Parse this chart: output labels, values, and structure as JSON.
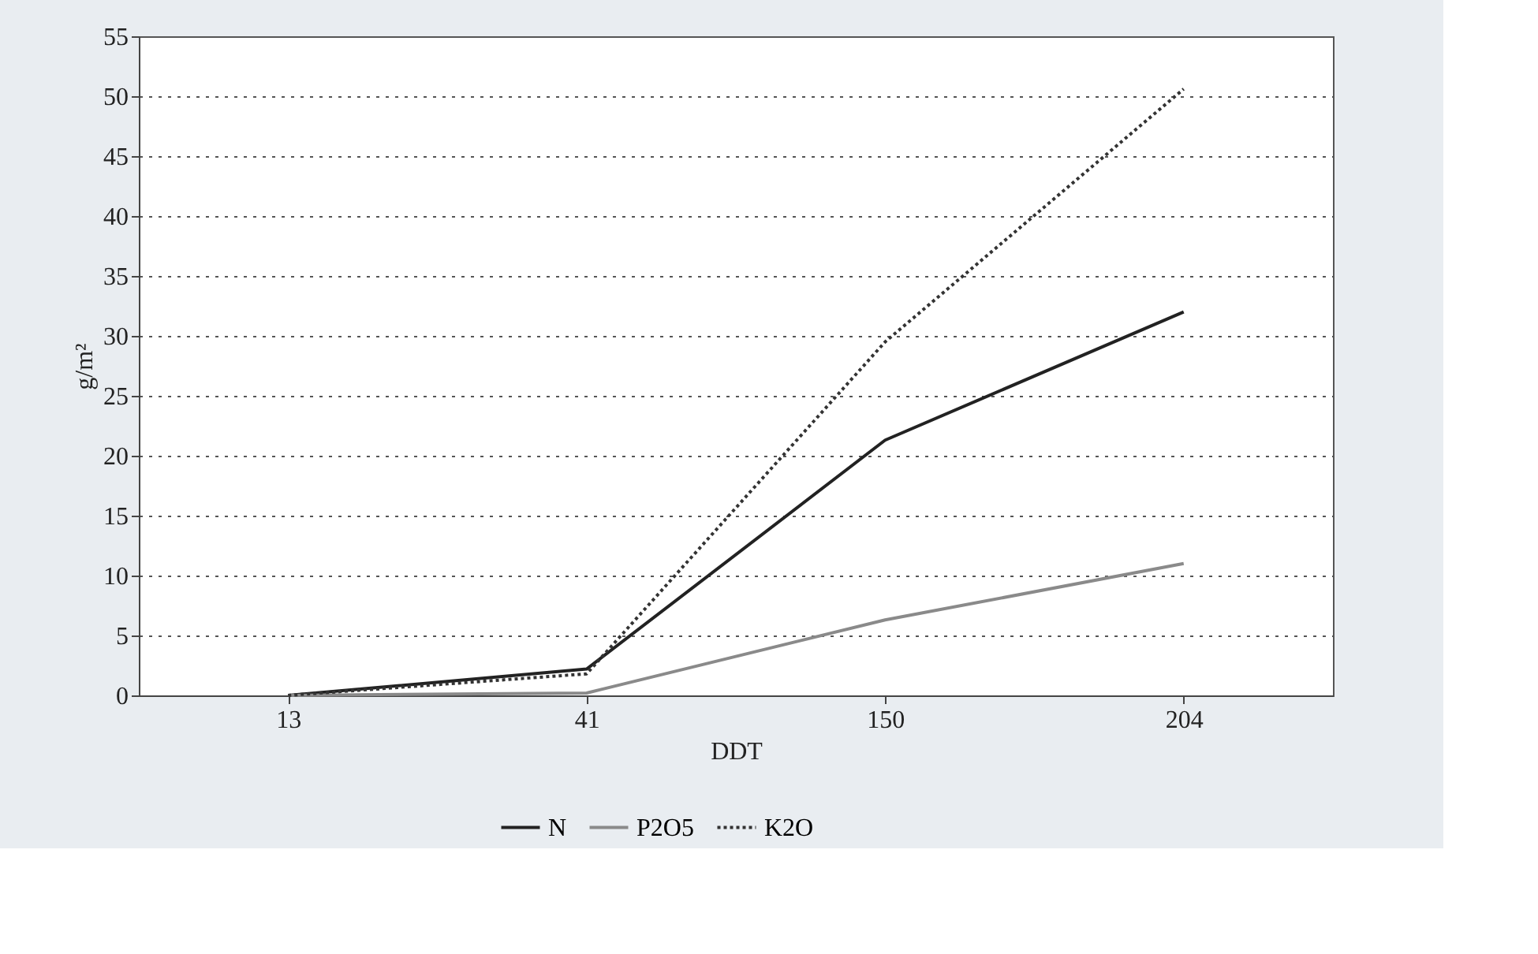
{
  "chart_data": {
    "type": "line",
    "xlabel": "DDT",
    "ylabel": "g/m²",
    "categories": [
      "13",
      "41",
      "150",
      "204"
    ],
    "ylim": [
      0,
      55
    ],
    "yticks": [
      0,
      5,
      10,
      15,
      20,
      25,
      30,
      35,
      40,
      45,
      50,
      55
    ],
    "grid": "y",
    "legend": "bottom",
    "marker": "none",
    "series": [
      {
        "name": "N",
        "color": "#222222",
        "line_style": "solid",
        "values": [
          0,
          2.2,
          21.3,
          32.0
        ]
      },
      {
        "name": "P2O5",
        "color": "#8a8a8a",
        "line_style": "solid",
        "values": [
          0,
          0.2,
          6.3,
          11.0
        ]
      },
      {
        "name": "K2O",
        "color": "#333333",
        "line_style": "dotted",
        "values": [
          0,
          1.8,
          29.5,
          50.6
        ]
      }
    ]
  }
}
